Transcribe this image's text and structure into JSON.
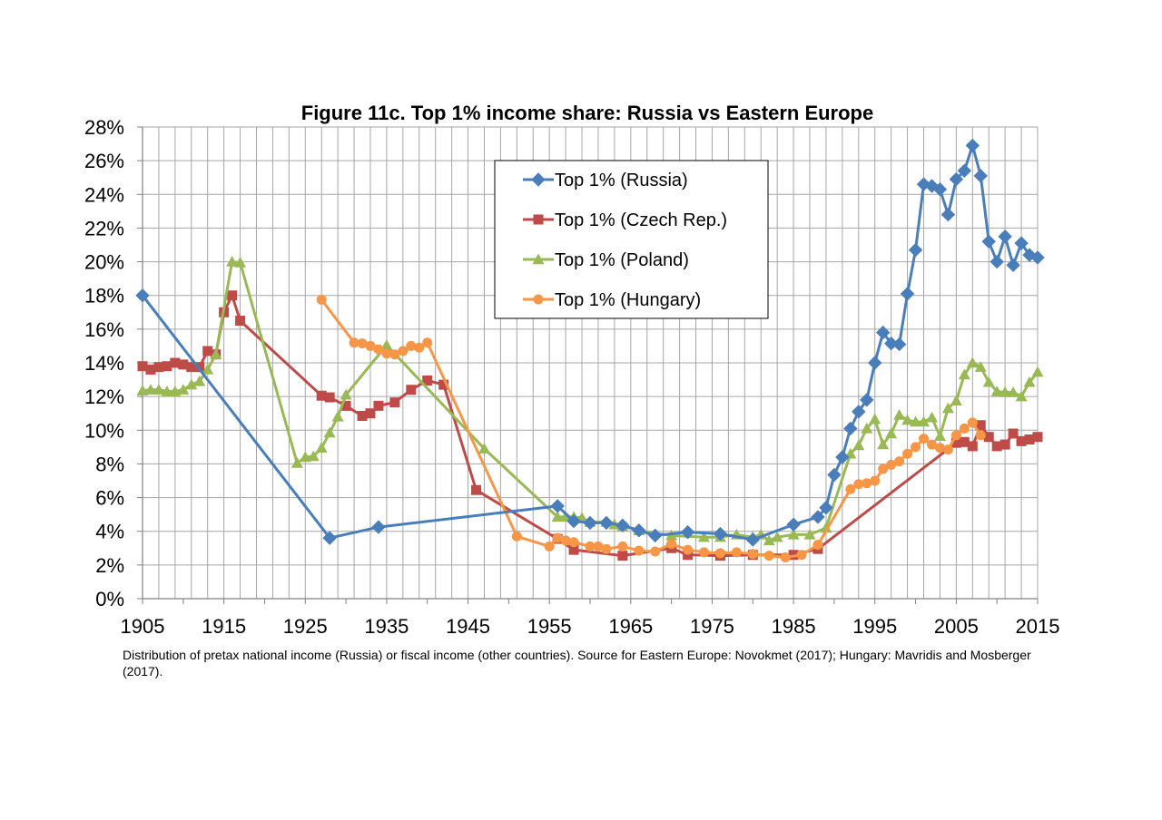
{
  "chart_data": {
    "type": "line",
    "title": "Figure 11c. Top 1% income share: Russia vs Eastern Europe",
    "xlabel": "",
    "ylabel": "",
    "xlim": [
      1905,
      2015
    ],
    "ylim": [
      0,
      28
    ],
    "x_ticks": [
      1905,
      1915,
      1925,
      1935,
      1945,
      1955,
      1965,
      1975,
      1985,
      1995,
      2005,
      2015
    ],
    "y_ticks": [
      0,
      2,
      4,
      6,
      8,
      10,
      12,
      14,
      16,
      18,
      20,
      22,
      24,
      26,
      28
    ],
    "y_tick_format": "percent",
    "grid": true,
    "legend_position": "top-center",
    "series": [
      {
        "name": "Top 1% (Russia)",
        "color": "#4a7ebb",
        "marker": "diamond",
        "points": [
          [
            1905,
            18.0
          ],
          [
            1928,
            3.6
          ],
          [
            1934,
            4.25
          ],
          [
            1956,
            5.5
          ],
          [
            1958,
            4.6
          ],
          [
            1960,
            4.5
          ],
          [
            1962,
            4.5
          ],
          [
            1964,
            4.35
          ],
          [
            1966,
            4.05
          ],
          [
            1968,
            3.75
          ],
          [
            1972,
            3.95
          ],
          [
            1976,
            3.85
          ],
          [
            1980,
            3.5
          ],
          [
            1985,
            4.4
          ],
          [
            1988,
            4.85
          ],
          [
            1989,
            5.4
          ],
          [
            1990,
            7.35
          ],
          [
            1991,
            8.4
          ],
          [
            1992,
            10.1
          ],
          [
            1993,
            11.1
          ],
          [
            1994,
            11.8
          ],
          [
            1995,
            14.0
          ],
          [
            1996,
            15.8
          ],
          [
            1997,
            15.15
          ],
          [
            1998,
            15.1
          ],
          [
            1999,
            18.1
          ],
          [
            2000,
            20.7
          ],
          [
            2001,
            24.6
          ],
          [
            2002,
            24.5
          ],
          [
            2003,
            24.3
          ],
          [
            2004,
            22.8
          ],
          [
            2005,
            24.9
          ],
          [
            2006,
            25.4
          ],
          [
            2007,
            26.9
          ],
          [
            2008,
            25.1
          ],
          [
            2009,
            21.2
          ],
          [
            2010,
            20.0
          ],
          [
            2011,
            21.5
          ],
          [
            2012,
            19.8
          ],
          [
            2013,
            21.1
          ],
          [
            2014,
            20.4
          ],
          [
            2015,
            20.25
          ]
        ]
      },
      {
        "name": "Top 1% (Czech Rep.)",
        "color": "#be4b48",
        "marker": "square",
        "points": [
          [
            1905,
            13.8
          ],
          [
            1906,
            13.6
          ],
          [
            1907,
            13.75
          ],
          [
            1908,
            13.8
          ],
          [
            1909,
            14.0
          ],
          [
            1910,
            13.9
          ],
          [
            1911,
            13.75
          ],
          [
            1912,
            13.75
          ],
          [
            1913,
            14.7
          ],
          [
            1914,
            14.5
          ],
          [
            1915,
            17.0
          ],
          [
            1916,
            18.0
          ],
          [
            1917,
            16.5
          ],
          [
            1927,
            12.05
          ],
          [
            1928,
            11.95
          ],
          [
            1930,
            11.45
          ],
          [
            1932,
            10.85
          ],
          [
            1933,
            11.0
          ],
          [
            1934,
            11.45
          ],
          [
            1936,
            11.65
          ],
          [
            1938,
            12.4
          ],
          [
            1940,
            12.95
          ],
          [
            1942,
            12.7
          ],
          [
            1946,
            6.45
          ],
          [
            1956,
            3.55
          ],
          [
            1958,
            2.9
          ],
          [
            1964,
            2.55
          ],
          [
            1970,
            3.0
          ],
          [
            1972,
            2.6
          ],
          [
            1976,
            2.55
          ],
          [
            1980,
            2.6
          ],
          [
            1985,
            2.6
          ],
          [
            1988,
            2.95
          ],
          [
            2005,
            9.25
          ],
          [
            2006,
            9.3
          ],
          [
            2007,
            9.05
          ],
          [
            2008,
            10.3
          ],
          [
            2009,
            9.6
          ],
          [
            2010,
            9.05
          ],
          [
            2011,
            9.15
          ],
          [
            2012,
            9.8
          ],
          [
            2013,
            9.35
          ],
          [
            2014,
            9.45
          ],
          [
            2015,
            9.6
          ]
        ]
      },
      {
        "name": "Top 1% (Poland)",
        "color": "#98b954",
        "marker": "triangle",
        "points": [
          [
            1905,
            12.35
          ],
          [
            1906,
            12.4
          ],
          [
            1907,
            12.4
          ],
          [
            1908,
            12.3
          ],
          [
            1909,
            12.3
          ],
          [
            1910,
            12.4
          ],
          [
            1911,
            12.7
          ],
          [
            1912,
            12.9
          ],
          [
            1913,
            13.6
          ],
          [
            1914,
            14.5
          ],
          [
            1916,
            20.0
          ],
          [
            1917,
            19.95
          ],
          [
            1924,
            8.05
          ],
          [
            1925,
            8.4
          ],
          [
            1926,
            8.45
          ],
          [
            1927,
            8.95
          ],
          [
            1928,
            9.85
          ],
          [
            1929,
            10.8
          ],
          [
            1930,
            12.1
          ],
          [
            1935,
            15.05
          ],
          [
            1947,
            8.9
          ],
          [
            1956,
            4.85
          ],
          [
            1957,
            4.85
          ],
          [
            1958,
            4.85
          ],
          [
            1959,
            4.8
          ],
          [
            1960,
            4.55
          ],
          [
            1962,
            4.55
          ],
          [
            1963,
            4.4
          ],
          [
            1964,
            4.3
          ],
          [
            1966,
            4.05
          ],
          [
            1970,
            3.75
          ],
          [
            1974,
            3.65
          ],
          [
            1976,
            3.65
          ],
          [
            1978,
            3.8
          ],
          [
            1980,
            3.65
          ],
          [
            1981,
            3.8
          ],
          [
            1982,
            3.45
          ],
          [
            1983,
            3.65
          ],
          [
            1985,
            3.8
          ],
          [
            1987,
            3.8
          ],
          [
            1989,
            4.2
          ],
          [
            1992,
            8.6
          ],
          [
            1993,
            9.1
          ],
          [
            1994,
            10.1
          ],
          [
            1995,
            10.65
          ],
          [
            1996,
            9.15
          ],
          [
            1997,
            9.8
          ],
          [
            1998,
            10.9
          ],
          [
            1999,
            10.6
          ],
          [
            2000,
            10.5
          ],
          [
            2001,
            10.5
          ],
          [
            2002,
            10.75
          ],
          [
            2003,
            9.65
          ],
          [
            2004,
            11.3
          ],
          [
            2005,
            11.75
          ],
          [
            2006,
            13.3
          ],
          [
            2007,
            14.0
          ],
          [
            2008,
            13.75
          ],
          [
            2009,
            12.85
          ],
          [
            2010,
            12.3
          ],
          [
            2011,
            12.25
          ],
          [
            2012,
            12.25
          ],
          [
            2013,
            12.0
          ],
          [
            2014,
            12.85
          ],
          [
            2015,
            13.45
          ]
        ]
      },
      {
        "name": "Top 1% (Hungary)",
        "color": "#f79646",
        "marker": "circle",
        "points": [
          [
            1927,
            17.75
          ],
          [
            1931,
            15.2
          ],
          [
            1932,
            15.15
          ],
          [
            1933,
            15.0
          ],
          [
            1934,
            14.8
          ],
          [
            1935,
            14.55
          ],
          [
            1936,
            14.5
          ],
          [
            1937,
            14.7
          ],
          [
            1938,
            15.0
          ],
          [
            1939,
            14.9
          ],
          [
            1940,
            15.2
          ],
          [
            1951,
            3.7
          ],
          [
            1955,
            3.1
          ],
          [
            1956,
            3.6
          ],
          [
            1957,
            3.45
          ],
          [
            1958,
            3.35
          ],
          [
            1960,
            3.1
          ],
          [
            1961,
            3.1
          ],
          [
            1962,
            2.95
          ],
          [
            1964,
            3.1
          ],
          [
            1966,
            2.85
          ],
          [
            1968,
            2.8
          ],
          [
            1970,
            3.25
          ],
          [
            1972,
            2.9
          ],
          [
            1974,
            2.75
          ],
          [
            1976,
            2.7
          ],
          [
            1978,
            2.75
          ],
          [
            1980,
            2.65
          ],
          [
            1982,
            2.55
          ],
          [
            1984,
            2.45
          ],
          [
            1986,
            2.6
          ],
          [
            1988,
            3.2
          ],
          [
            1992,
            6.5
          ],
          [
            1993,
            6.8
          ],
          [
            1994,
            6.85
          ],
          [
            1995,
            7.0
          ],
          [
            1996,
            7.7
          ],
          [
            1997,
            7.95
          ],
          [
            1998,
            8.15
          ],
          [
            1999,
            8.6
          ],
          [
            2000,
            9.0
          ],
          [
            2001,
            9.5
          ],
          [
            2002,
            9.15
          ],
          [
            2003,
            8.95
          ],
          [
            2004,
            8.85
          ],
          [
            2005,
            9.7
          ],
          [
            2006,
            10.1
          ],
          [
            2007,
            10.45
          ],
          [
            2008,
            9.7
          ]
        ]
      }
    ]
  },
  "caption": "Distribution of pretax national income (Russia) or fiscal income (other countries). Source for Eastern Europe: Novokmet (2017); Hungary: Mavridis and Mosberger (2017)."
}
